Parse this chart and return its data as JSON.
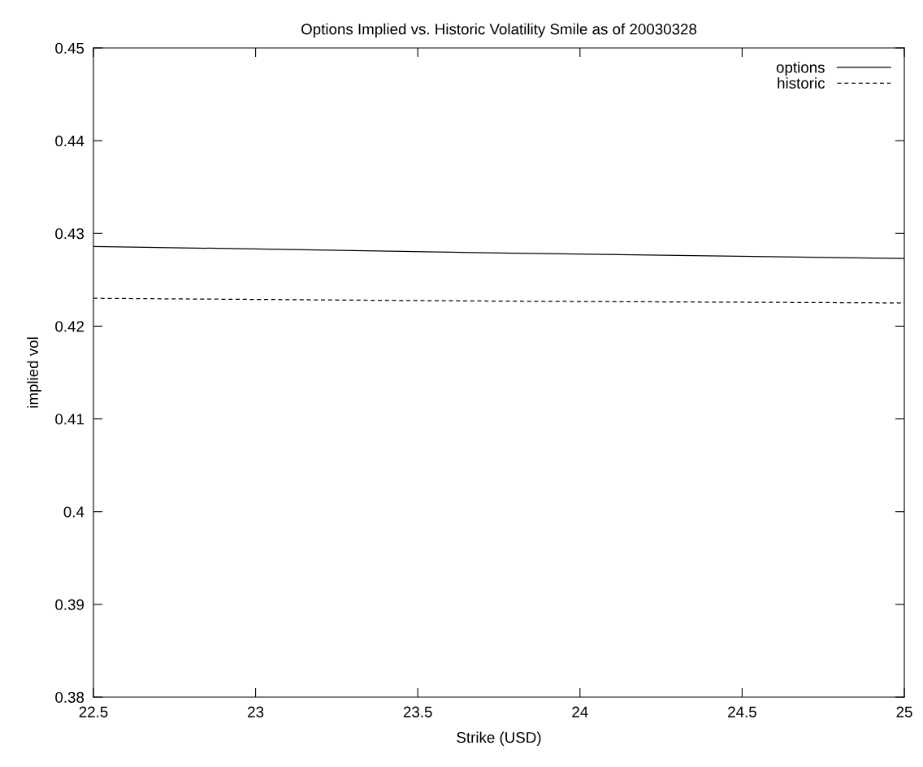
{
  "chart_data": {
    "type": "line",
    "title": "Options Implied vs. Historic Volatility Smile as of 20030328",
    "xlabel": "Strike (USD)",
    "ylabel": "implied vol",
    "series": [
      {
        "name": "options",
        "color": "#000000",
        "line_style": "solid",
        "x": [
          22.5,
          23.75,
          25
        ],
        "values": [
          0.4286,
          0.4279,
          0.4273
        ]
      },
      {
        "name": "historic",
        "color": "#000000",
        "line_style": "dashed",
        "x": [
          22.5,
          23.75,
          25
        ],
        "values": [
          0.423,
          0.4227,
          0.4225
        ]
      }
    ],
    "xlim": [
      22.5,
      25
    ],
    "xticks": [
      22.5,
      23,
      23.5,
      24,
      24.5,
      25
    ],
    "ylim": [
      0.38,
      0.45
    ],
    "yticks": [
      0.38,
      0.39,
      0.4,
      0.41,
      0.42,
      0.43,
      0.44,
      0.45
    ],
    "grid": false,
    "legend": "top right",
    "marker": "none"
  }
}
